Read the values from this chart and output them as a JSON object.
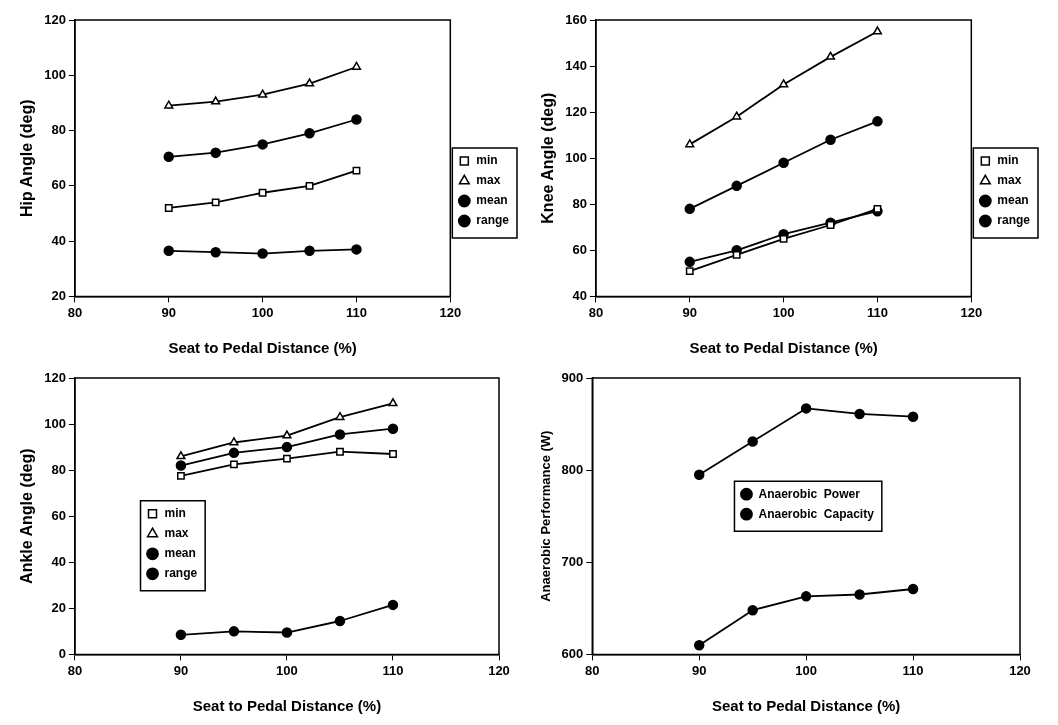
{
  "chart_data": [
    {
      "type": "line",
      "xlabel": "Seat to Pedal Distance (%)",
      "ylabel": "Hip Angle (deg)",
      "x": [
        90,
        95,
        100,
        105,
        110
      ],
      "xlim": [
        80,
        120
      ],
      "xticks": [
        80,
        90,
        100,
        110,
        120
      ],
      "ylim": [
        20,
        120
      ],
      "yticks": [
        20,
        40,
        60,
        80,
        100,
        120
      ],
      "grid": false,
      "legend": "right",
      "series": [
        {
          "name": "min",
          "color": "#000000",
          "marker": "square",
          "values": [
            52,
            54,
            57.5,
            60,
            65.5
          ]
        },
        {
          "name": "max",
          "color": "#000000",
          "marker": "triangle",
          "values": [
            89,
            90.5,
            93,
            97,
            103
          ]
        },
        {
          "name": "mean",
          "color": "#000000",
          "marker": "circle",
          "values": [
            70.5,
            72,
            75,
            79,
            84
          ]
        },
        {
          "name": "range",
          "color": "#000000",
          "marker": "circle",
          "values": [
            36.5,
            36,
            35.5,
            36.5,
            37
          ]
        }
      ]
    },
    {
      "type": "line",
      "xlabel": "Seat to Pedal Distance (%)",
      "ylabel": "Knee Angle (deg)",
      "x": [
        90,
        95,
        100,
        105,
        110
      ],
      "xlim": [
        80,
        120
      ],
      "xticks": [
        80,
        90,
        100,
        110,
        120
      ],
      "ylim": [
        40,
        160
      ],
      "yticks": [
        40,
        60,
        80,
        100,
        120,
        140,
        160
      ],
      "grid": false,
      "legend": "right",
      "series": [
        {
          "name": "min",
          "color": "#000000",
          "marker": "square",
          "values": [
            51,
            58,
            65,
            71,
            78
          ]
        },
        {
          "name": "max",
          "color": "#000000",
          "marker": "triangle",
          "values": [
            106,
            118,
            132,
            144,
            155
          ]
        },
        {
          "name": "mean",
          "color": "#000000",
          "marker": "circle",
          "values": [
            78,
            88,
            98,
            108,
            116
          ]
        },
        {
          "name": "range",
          "color": "#000000",
          "marker": "circle",
          "values": [
            55,
            60,
            67,
            72,
            77
          ]
        }
      ]
    },
    {
      "type": "line",
      "xlabel": "Seat to Pedal Distance (%)",
      "ylabel": "Ankle Angle (deg)",
      "x": [
        90,
        95,
        100,
        105,
        110
      ],
      "xlim": [
        80,
        120
      ],
      "xticks": [
        80,
        90,
        100,
        110,
        120
      ],
      "ylim": [
        0,
        120
      ],
      "yticks": [
        0,
        20,
        40,
        60,
        80,
        100,
        120
      ],
      "grid": false,
      "legend": "center left",
      "series": [
        {
          "name": "min",
          "color": "#000000",
          "marker": "square",
          "values": [
            77.5,
            82.5,
            85,
            88,
            87
          ]
        },
        {
          "name": "max",
          "color": "#000000",
          "marker": "triangle",
          "values": [
            86,
            92,
            95,
            103,
            109
          ]
        },
        {
          "name": "mean",
          "color": "#000000",
          "marker": "circle",
          "values": [
            82,
            87.5,
            90,
            95.5,
            98
          ]
        },
        {
          "name": "range",
          "color": "#000000",
          "marker": "circle",
          "values": [
            8.5,
            10,
            9.5,
            14.5,
            21.5
          ]
        }
      ]
    },
    {
      "type": "line",
      "xlabel": "Seat to Pedal Distance (%)",
      "ylabel": "Anaerobic Performance (W)",
      "x": [
        90,
        95,
        100,
        105,
        110
      ],
      "xlim": [
        80,
        120
      ],
      "xticks": [
        80,
        90,
        100,
        110,
        120
      ],
      "ylim": [
        600,
        900
      ],
      "yticks": [
        600,
        700,
        800,
        900
      ],
      "grid": false,
      "legend": "center",
      "series": [
        {
          "name": "Anaerobic  Power",
          "color": "#000000",
          "marker": "circle",
          "values": [
            795,
            831,
            867,
            861,
            858
          ]
        },
        {
          "name": "Anaerobic  Capacity",
          "color": "#000000",
          "marker": "circle",
          "values": [
            610,
            648,
            663,
            665,
            671
          ]
        }
      ]
    }
  ]
}
